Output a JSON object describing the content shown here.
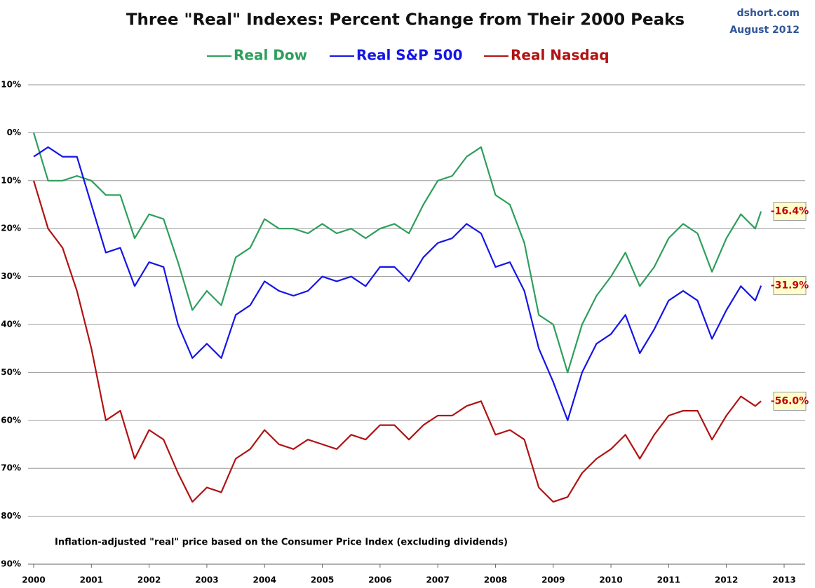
{
  "chart_data": {
    "type": "line",
    "title": "Three \"Real\" Indexes: Percent Change from Their 2000 Peaks",
    "source": "dshort.com",
    "date": "August 2012",
    "annotation": "Inflation-adjusted \"real\" price based on the Consumer Price Index (excluding dividends)",
    "x": [
      2000,
      2000.25,
      2000.5,
      2000.75,
      2001,
      2001.25,
      2001.5,
      2001.75,
      2002,
      2002.25,
      2002.5,
      2002.75,
      2003,
      2003.25,
      2003.5,
      2003.75,
      2004,
      2004.25,
      2004.5,
      2004.75,
      2005,
      2005.25,
      2005.5,
      2005.75,
      2006,
      2006.25,
      2006.5,
      2006.75,
      2007,
      2007.25,
      2007.5,
      2007.75,
      2008,
      2008.25,
      2008.5,
      2008.75,
      2009,
      2009.25,
      2009.5,
      2009.75,
      2010,
      2010.25,
      2010.5,
      2010.75,
      2011,
      2011.25,
      2011.5,
      2011.75,
      2012,
      2012.25,
      2012.5,
      2012.6
    ],
    "series": [
      {
        "name": "Real Dow",
        "color": "#2e9e5b",
        "values": [
          0,
          -10,
          -10,
          -9,
          -10,
          -13,
          -13,
          -22,
          -17,
          -18,
          -27,
          -37,
          -33,
          -36,
          -26,
          -24,
          -18,
          -20,
          -20,
          -21,
          -19,
          -21,
          -20,
          -22,
          -20,
          -19,
          -21,
          -15,
          -10,
          -9,
          -5,
          -3,
          -13,
          -15,
          -23,
          -38,
          -40,
          -50,
          -40,
          -34,
          -30,
          -25,
          -32,
          -28,
          -22,
          -19,
          -21,
          -29,
          -22,
          -17,
          -20,
          -16.4
        ],
        "value_labels": [
          null,
          null,
          null,
          null,
          null,
          null,
          null,
          null,
          null,
          null,
          null,
          null,
          null,
          null,
          null,
          null,
          null,
          null,
          null,
          null,
          null,
          null,
          null,
          null,
          null,
          null,
          null,
          null,
          null,
          null,
          null,
          null,
          null,
          null,
          null,
          null,
          null,
          null,
          null,
          null,
          null,
          null,
          null,
          null,
          null,
          null,
          null,
          null,
          null,
          null,
          null,
          "-16.4%"
        ]
      },
      {
        "name": "Real S&P 500",
        "color": "#1515e6",
        "values": [
          -5,
          -3,
          -5,
          -5,
          -15,
          -25,
          -24,
          -32,
          -27,
          -28,
          -40,
          -47,
          -44,
          -47,
          -38,
          -36,
          -31,
          -33,
          -34,
          -33,
          -30,
          -31,
          -30,
          -32,
          -28,
          -28,
          -31,
          -26,
          -23,
          -22,
          -19,
          -21,
          -28,
          -27,
          -33,
          -45,
          -52,
          -60,
          -50,
          -44,
          -42,
          -38,
          -46,
          -41,
          -35,
          -33,
          -35,
          -43,
          -37,
          -32,
          -35,
          -31.9
        ],
        "value_labels": [
          null,
          null,
          null,
          null,
          null,
          null,
          null,
          null,
          null,
          null,
          null,
          null,
          null,
          null,
          null,
          null,
          null,
          null,
          null,
          null,
          null,
          null,
          null,
          null,
          null,
          null,
          null,
          null,
          null,
          null,
          null,
          null,
          null,
          null,
          null,
          null,
          null,
          null,
          null,
          null,
          null,
          null,
          null,
          null,
          null,
          null,
          null,
          null,
          null,
          null,
          null,
          "-31.9%"
        ]
      },
      {
        "name": "Real Nasdaq",
        "color": "#b01212",
        "values": [
          -10,
          -20,
          -24,
          -33,
          -45,
          -60,
          -58,
          -68,
          -62,
          -64,
          -71,
          -77,
          -74,
          -75,
          -68,
          -66,
          -62,
          -65,
          -66,
          -64,
          -65,
          -66,
          -63,
          -64,
          -61,
          -61,
          -64,
          -61,
          -59,
          -59,
          -57,
          -56,
          -63,
          -62,
          -64,
          -74,
          -77,
          -76,
          -71,
          -68,
          -66,
          -63,
          -68,
          -63,
          -59,
          -58,
          -58,
          -64,
          -59,
          -55,
          -57,
          -56.0
        ],
        "value_labels": [
          null,
          null,
          null,
          null,
          null,
          null,
          null,
          null,
          null,
          null,
          null,
          null,
          null,
          null,
          null,
          null,
          null,
          null,
          null,
          null,
          null,
          null,
          null,
          null,
          null,
          null,
          null,
          null,
          null,
          null,
          null,
          null,
          null,
          null,
          null,
          null,
          null,
          null,
          null,
          null,
          null,
          null,
          null,
          null,
          null,
          null,
          null,
          null,
          null,
          null,
          null,
          "-56.0%"
        ]
      }
    ],
    "xlim": [
      2000,
      2013
    ],
    "xticks": [
      2000,
      2001,
      2002,
      2003,
      2004,
      2005,
      2006,
      2007,
      2008,
      2009,
      2010,
      2011,
      2012,
      2013
    ],
    "ylim": [
      -90,
      10
    ],
    "yticks": [
      {
        "value": 10,
        "label": "10%"
      },
      {
        "value": 0,
        "label": "0%"
      },
      {
        "value": -10,
        "label": "10%"
      },
      {
        "value": -20,
        "label": "20%"
      },
      {
        "value": -30,
        "label": "30%"
      },
      {
        "value": -40,
        "label": "40%"
      },
      {
        "value": -50,
        "label": "50%"
      },
      {
        "value": -60,
        "label": "60%"
      },
      {
        "value": -70,
        "label": "70%"
      },
      {
        "value": -80,
        "label": "80%"
      },
      {
        "value": -90,
        "label": "90%"
      }
    ],
    "grid": true
  }
}
